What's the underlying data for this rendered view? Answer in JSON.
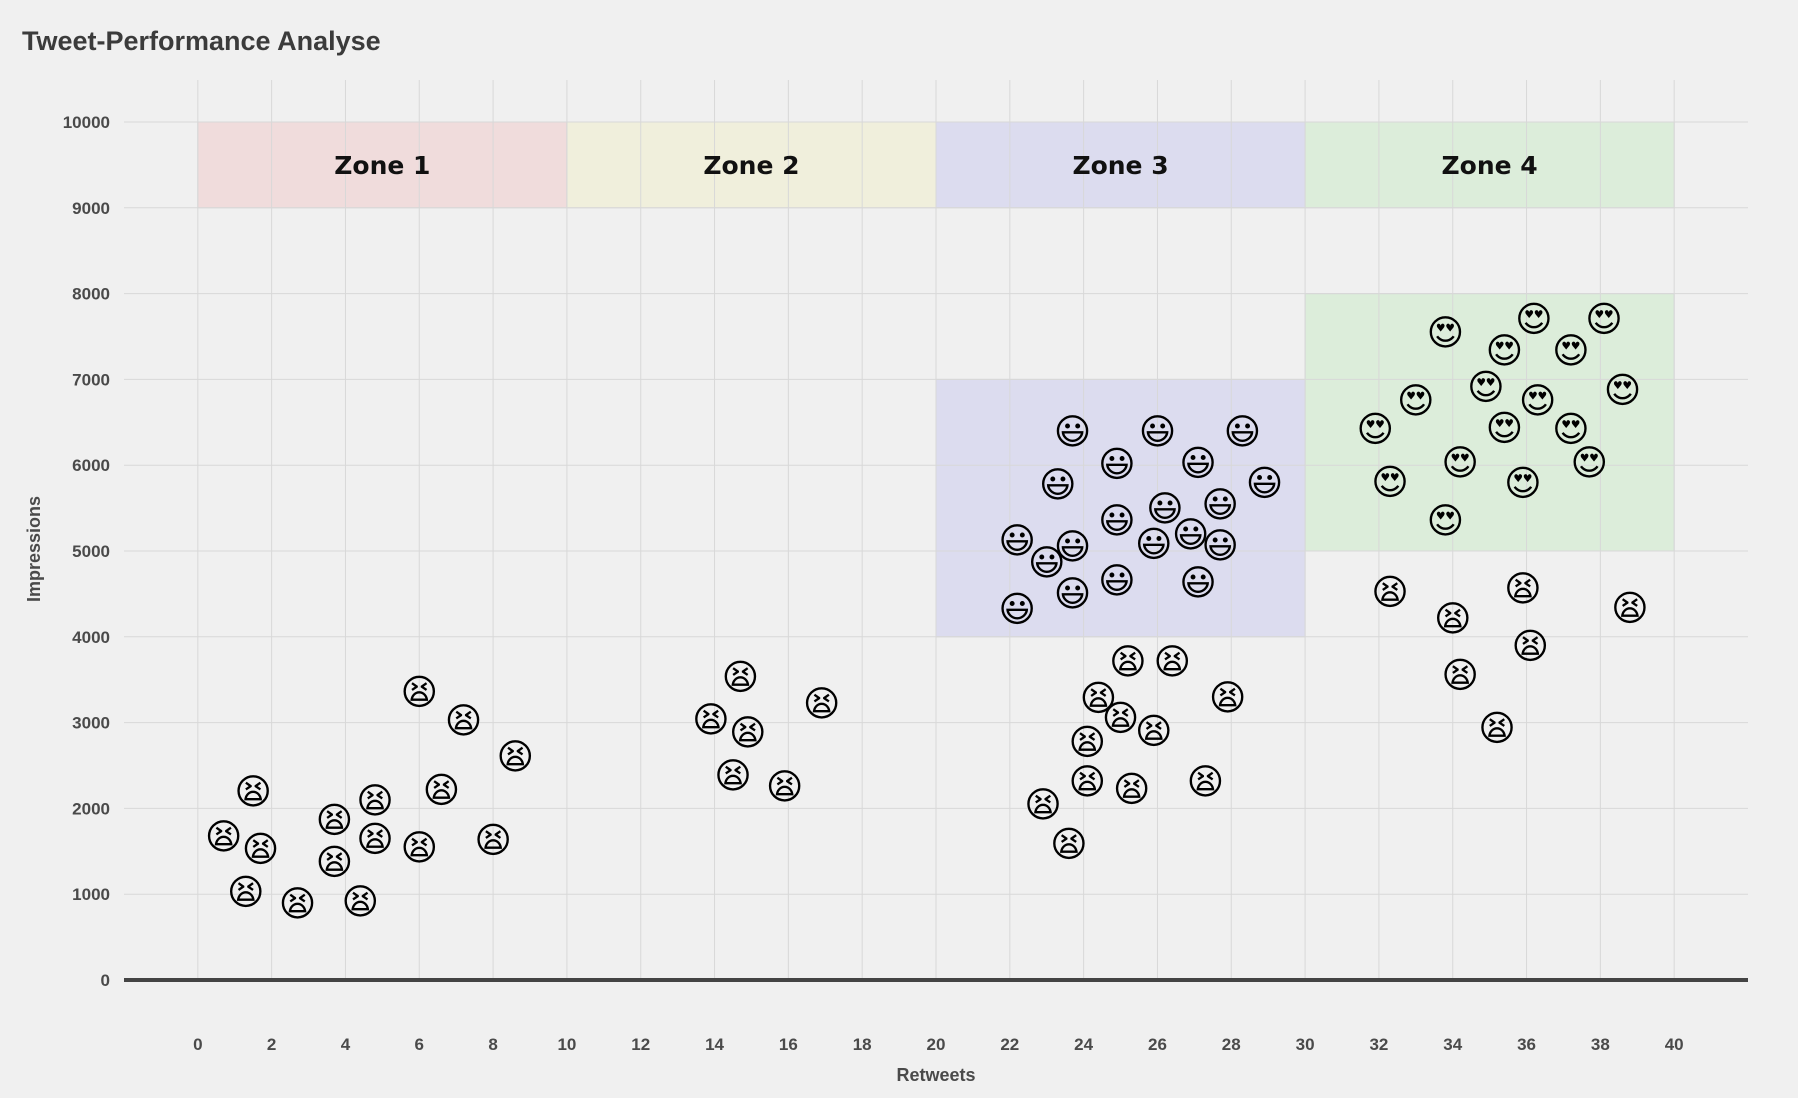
{
  "chart_data": {
    "type": "scatter",
    "title": "Tweet-Performance Analyse",
    "xlabel": "Retweets",
    "ylabel": "Impressions",
    "xlim": [
      -2,
      42
    ],
    "ylim": [
      0,
      10000
    ],
    "xticks": [
      0,
      2,
      4,
      6,
      8,
      10,
      12,
      14,
      16,
      18,
      20,
      22,
      24,
      26,
      28,
      30,
      32,
      34,
      36,
      38,
      40
    ],
    "yticks": [
      0,
      1000,
      2000,
      3000,
      4000,
      5000,
      6000,
      7000,
      8000,
      9000,
      10000
    ],
    "grid": true,
    "zones": [
      {
        "label": "Zone 1",
        "x": [
          0,
          10
        ],
        "y": [
          9000,
          10000
        ],
        "color": "#f0dcdc"
      },
      {
        "label": "Zone 2",
        "x": [
          10,
          20
        ],
        "y": [
          9000,
          10000
        ],
        "color": "#f0efdc"
      },
      {
        "label": "Zone 3",
        "x": [
          20,
          30
        ],
        "y": [
          9000,
          10000
        ],
        "color": "#dcdcef"
      },
      {
        "label": "Zone 4",
        "x": [
          30,
          40
        ],
        "y": [
          9000,
          10000
        ],
        "color": "#dcedda"
      }
    ],
    "highlights": [
      {
        "x": [
          20,
          30
        ],
        "y": [
          4000,
          7000
        ],
        "color": "#dcdcef"
      },
      {
        "x": [
          30,
          40
        ],
        "y": [
          5000,
          8000
        ],
        "color": "#dcedda"
      }
    ],
    "series": [
      {
        "marker": "😫",
        "points": [
          [
            0.7,
            1680
          ],
          [
            1.3,
            1030
          ],
          [
            1.5,
            2200
          ],
          [
            1.7,
            1530
          ],
          [
            2.7,
            900
          ],
          [
            3.7,
            1870
          ],
          [
            3.7,
            1380
          ],
          [
            4.4,
            920
          ],
          [
            4.8,
            2100
          ],
          [
            4.8,
            1650
          ],
          [
            6.0,
            3360
          ],
          [
            6.0,
            1550
          ],
          [
            6.6,
            2220
          ],
          [
            7.2,
            3030
          ],
          [
            8.0,
            1640
          ],
          [
            8.6,
            2610
          ],
          [
            13.9,
            3040
          ],
          [
            14.5,
            2390
          ],
          [
            14.7,
            3540
          ],
          [
            14.9,
            2890
          ],
          [
            15.9,
            2260
          ],
          [
            16.9,
            3230
          ],
          [
            22.9,
            2050
          ],
          [
            23.6,
            1590
          ],
          [
            24.1,
            2320
          ],
          [
            24.1,
            2780
          ],
          [
            24.4,
            3290
          ],
          [
            25.0,
            3060
          ],
          [
            25.2,
            3720
          ],
          [
            25.3,
            2230
          ],
          [
            25.9,
            2910
          ],
          [
            26.4,
            3720
          ],
          [
            27.3,
            2320
          ],
          [
            27.9,
            3300
          ],
          [
            32.3,
            4530
          ],
          [
            34.0,
            4220
          ],
          [
            34.2,
            3560
          ],
          [
            35.2,
            2940
          ],
          [
            35.9,
            4570
          ],
          [
            36.1,
            3900
          ],
          [
            38.8,
            4340
          ]
        ]
      },
      {
        "marker": "😃",
        "points": [
          [
            22.2,
            4330
          ],
          [
            22.2,
            5130
          ],
          [
            23.0,
            4870
          ],
          [
            23.3,
            5780
          ],
          [
            23.7,
            6400
          ],
          [
            23.7,
            5060
          ],
          [
            23.7,
            4510
          ],
          [
            24.9,
            6020
          ],
          [
            24.9,
            5360
          ],
          [
            24.9,
            4660
          ],
          [
            25.9,
            5090
          ],
          [
            26.0,
            6400
          ],
          [
            26.2,
            5500
          ],
          [
            26.9,
            5200
          ],
          [
            27.1,
            6030
          ],
          [
            27.1,
            4640
          ],
          [
            27.7,
            5550
          ],
          [
            27.7,
            5070
          ],
          [
            28.3,
            6400
          ],
          [
            28.9,
            5800
          ]
        ]
      },
      {
        "marker": "😍",
        "points": [
          [
            31.9,
            6430
          ],
          [
            32.3,
            5810
          ],
          [
            33.0,
            6760
          ],
          [
            33.8,
            7550
          ],
          [
            33.8,
            5360
          ],
          [
            34.2,
            6040
          ],
          [
            34.9,
            6920
          ],
          [
            35.4,
            7340
          ],
          [
            35.4,
            6440
          ],
          [
            35.9,
            5800
          ],
          [
            36.2,
            7710
          ],
          [
            36.3,
            6760
          ],
          [
            37.2,
            7340
          ],
          [
            37.2,
            6430
          ],
          [
            37.7,
            6040
          ],
          [
            38.1,
            7710
          ],
          [
            38.6,
            6880
          ]
        ]
      }
    ]
  }
}
